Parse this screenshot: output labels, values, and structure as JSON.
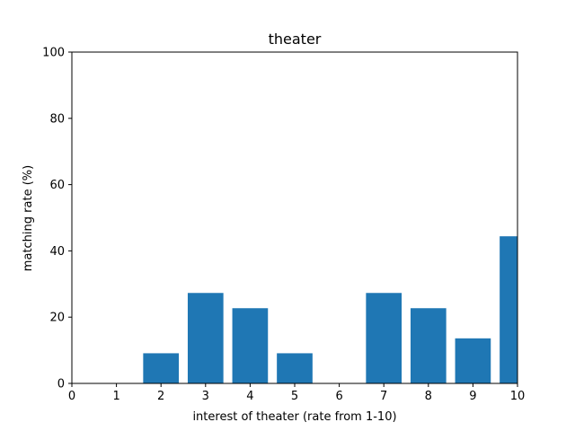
{
  "chart_data": {
    "type": "bar",
    "title": "theater",
    "xlabel": "interest of theater (rate from 1-10)",
    "ylabel": "matching rate (%)",
    "x": [
      1,
      2,
      3,
      4,
      5,
      6,
      7,
      8,
      9,
      10
    ],
    "values": [
      0,
      9.1,
      27.3,
      22.7,
      9.1,
      0,
      27.3,
      22.7,
      13.6,
      44.4
    ],
    "xlim": [
      0,
      10
    ],
    "ylim": [
      0,
      100
    ],
    "xticks": [
      "0",
      "1",
      "2",
      "3",
      "4",
      "5",
      "6",
      "7",
      "8",
      "9",
      "10"
    ],
    "yticks": [
      "0",
      "20",
      "40",
      "60",
      "80",
      "100"
    ],
    "grid": false,
    "bar_color": "#1f77b4"
  }
}
